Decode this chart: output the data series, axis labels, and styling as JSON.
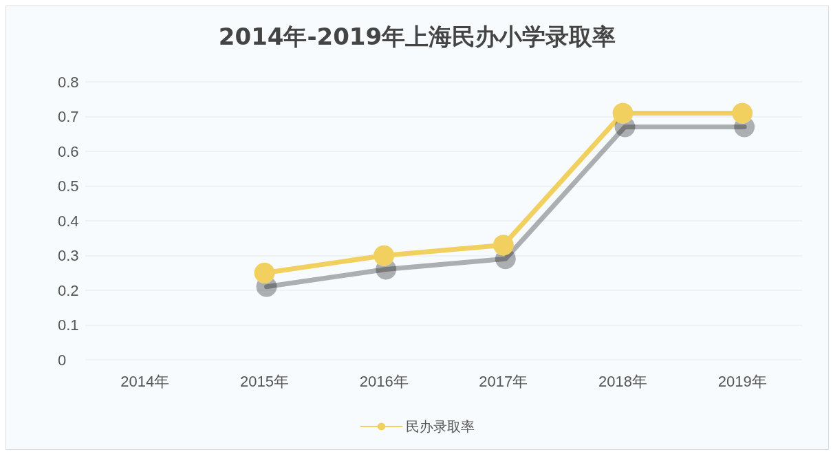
{
  "chart_data": {
    "type": "line",
    "title": "2014年-2019年上海民办小学录取率",
    "categories": [
      "2014年",
      "2015年",
      "2016年",
      "2017年",
      "2018年",
      "2019年"
    ],
    "series": [
      {
        "name": "民办录取率",
        "color": "#f2d060",
        "values": [
          null,
          0.25,
          0.3,
          0.33,
          0.71,
          0.71
        ]
      }
    ],
    "ylim": [
      0,
      0.8
    ],
    "yticks": [
      0,
      0.1,
      0.2,
      0.3,
      0.4,
      0.5,
      0.6,
      0.7,
      0.8
    ],
    "grid": "y",
    "legend": "bottom",
    "marker": "circle",
    "line_style": "solid"
  }
}
